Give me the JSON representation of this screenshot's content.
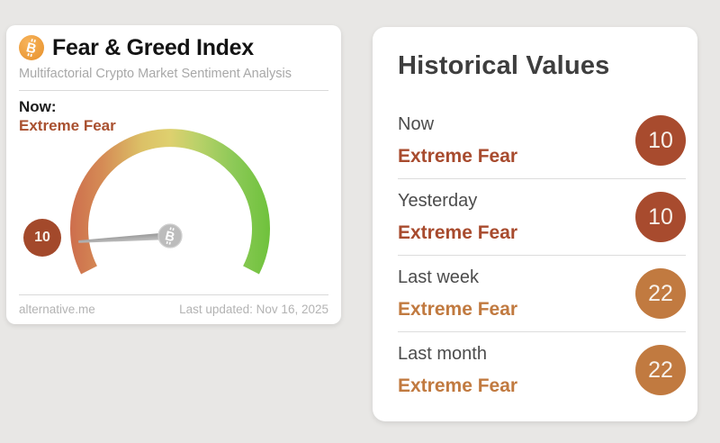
{
  "page": {
    "background": "#e8e7e5"
  },
  "left_card": {
    "title": "Fear & Greed Index",
    "subtitle": "Multifactorial Crypto Market Sentiment Analysis",
    "now_label": "Now:",
    "now_value": "Extreme Fear",
    "now_value_color": "#a9502f",
    "source": "alternative.me",
    "last_updated": "Last updated: Nov 16, 2025"
  },
  "icons": {
    "bitcoin": "₿",
    "bitcoin_circle_color": "#efa03e"
  },
  "gauge": {
    "value": 10,
    "min": 0,
    "max": 100,
    "badge_label": "10",
    "badge_color": "#a3492b",
    "needle_color": "#a9a9a9",
    "hub_color": "#bcbcbc",
    "gradient": [
      "#cd6e4d",
      "#d58b55",
      "#dcc167",
      "#ded06e",
      "#b9d169",
      "#8cc957",
      "#6fc23c"
    ]
  },
  "right_card": {
    "title": "Historical Values",
    "rows": [
      {
        "label": "Now",
        "value": "Extreme Fear",
        "score": "10",
        "accent": "#a84b2e"
      },
      {
        "label": "Yesterday",
        "value": "Extreme Fear",
        "score": "10",
        "accent": "#a84b2e"
      },
      {
        "label": "Last week",
        "value": "Extreme Fear",
        "score": "22",
        "accent": "#c17a40"
      },
      {
        "label": "Last month",
        "value": "Extreme Fear",
        "score": "22",
        "accent": "#c17a40"
      }
    ]
  },
  "chart_data": {
    "type": "gauge",
    "title": "Fear & Greed Index",
    "value": 10,
    "min": 0,
    "max": 100,
    "classification": "Extreme Fear",
    "color_scale": "red (fear, 0) through yellow to green (greed, 100)",
    "historical": [
      {
        "period": "Now",
        "classification": "Extreme Fear",
        "value": 10
      },
      {
        "period": "Yesterday",
        "classification": "Extreme Fear",
        "value": 10
      },
      {
        "period": "Last week",
        "classification": "Extreme Fear",
        "value": 22
      },
      {
        "period": "Last month",
        "classification": "Extreme Fear",
        "value": 22
      }
    ]
  }
}
